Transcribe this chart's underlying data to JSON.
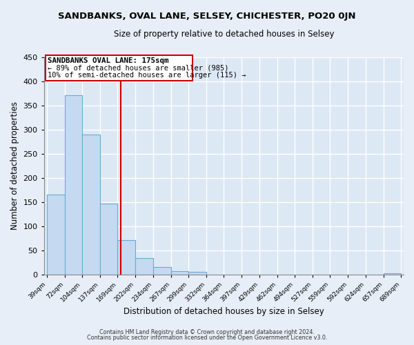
{
  "title": "SANDBANKS, OVAL LANE, SELSEY, CHICHESTER, PO20 0JN",
  "subtitle": "Size of property relative to detached houses in Selsey",
  "xlabel": "Distribution of detached houses by size in Selsey",
  "ylabel": "Number of detached properties",
  "bin_edges": [
    39,
    72,
    104,
    137,
    169,
    202,
    234,
    267,
    299,
    332,
    364,
    397,
    429,
    462,
    494,
    527,
    559,
    592,
    624,
    657,
    689
  ],
  "bar_heights": [
    165,
    372,
    290,
    147,
    71,
    34,
    15,
    7,
    6,
    0,
    0,
    0,
    0,
    0,
    0,
    0,
    0,
    0,
    0,
    3
  ],
  "tick_labels": [
    "39sqm",
    "72sqm",
    "104sqm",
    "137sqm",
    "169sqm",
    "202sqm",
    "234sqm",
    "267sqm",
    "299sqm",
    "332sqm",
    "364sqm",
    "397sqm",
    "429sqm",
    "462sqm",
    "494sqm",
    "527sqm",
    "559sqm",
    "592sqm",
    "624sqm",
    "657sqm",
    "689sqm"
  ],
  "bar_color": "#c5d9f0",
  "bar_edge_color": "#6aaad4",
  "vline_x": 175,
  "vline_color": "#cc0000",
  "annotation_box_color": "#cc0000",
  "annotation_line1": "SANDBANKS OVAL LANE: 175sqm",
  "annotation_line2": "← 89% of detached houses are smaller (985)",
  "annotation_line3": "10% of semi-detached houses are larger (115) →",
  "ylim": [
    0,
    450
  ],
  "yticks": [
    0,
    50,
    100,
    150,
    200,
    250,
    300,
    350,
    400,
    450
  ],
  "fig_bg": "#e8eef7",
  "ax_bg": "#dde8f5",
  "grid_color": "#ffffff",
  "footer_line1": "Contains HM Land Registry data © Crown copyright and database right 2024.",
  "footer_line2": "Contains public sector information licensed under the Open Government Licence v3.0."
}
